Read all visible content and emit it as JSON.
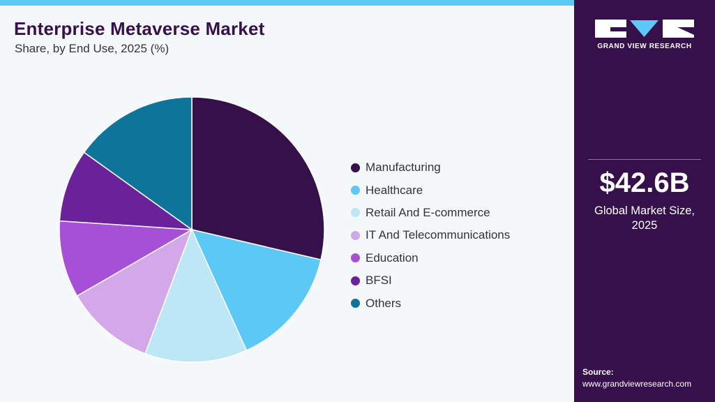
{
  "header": {
    "title": "Enterprise Metaverse Market",
    "subtitle": "Share, by End Use, 2025 (%)"
  },
  "chart_data": {
    "type": "pie",
    "title": "Enterprise Metaverse Market",
    "subtitle": "Share, by End Use, 2025 (%)",
    "categories": [
      "Manufacturing",
      "Healthcare",
      "Retail And E-commerce",
      "IT And Telecommunications",
      "Education",
      "BFSI",
      "Others"
    ],
    "values": [
      27.5,
      14.0,
      12.0,
      10.5,
      9.0,
      8.5,
      14.5
    ],
    "colors": [
      "#36104a",
      "#5bc8f5",
      "#bde6f7",
      "#d3a8e8",
      "#a550d6",
      "#6b2199",
      "#0e7499"
    ],
    "legend_position": "right",
    "start_angle": "12 o'clock",
    "direction": "clockwise"
  },
  "sidebar": {
    "logo_text": "GRAND VIEW RESEARCH",
    "market_size_value": "$42.6B",
    "market_size_caption_line1": "Global Market Size,",
    "market_size_caption_line2": "2025",
    "source_label": "Source:",
    "source_url": "www.grandviewresearch.com",
    "colors": {
      "background": "#36104a",
      "accent": "#5bc8f5"
    }
  }
}
